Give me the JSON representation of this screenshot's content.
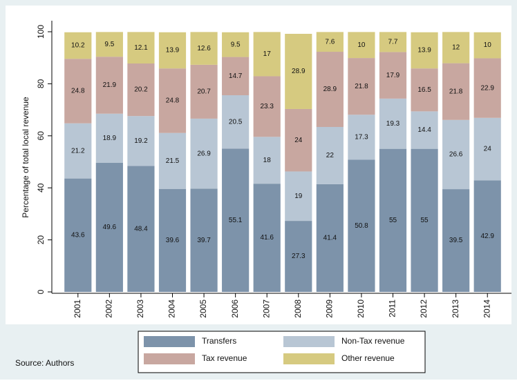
{
  "chart_data": {
    "type": "stacked_bar",
    "y_label": "Percentage of total local revenue",
    "source": "Source: Authors",
    "categories": [
      "2001",
      "2002",
      "2003",
      "2004",
      "2005",
      "2006",
      "2007",
      "2008",
      "2009",
      "2010",
      "2011",
      "2012",
      "2013",
      "2014"
    ],
    "series": [
      {
        "name": "Transfers",
        "color": "#7d93aa",
        "values": [
          43.6,
          49.6,
          48.4,
          39.6,
          39.7,
          55.1,
          41.6,
          27.3,
          41.4,
          50.8,
          55,
          55,
          39.5,
          42.9
        ]
      },
      {
        "name": "Non-Tax revenue",
        "color": "#b8c6d4",
        "values": [
          21.2,
          18.9,
          19.2,
          21.5,
          26.9,
          20.5,
          18,
          19,
          22,
          17.3,
          19.3,
          14.4,
          26.6,
          24
        ]
      },
      {
        "name": "Tax revenue",
        "color": "#c8a7a0",
        "values": [
          24.8,
          21.9,
          20.2,
          24.8,
          20.7,
          14.7,
          23.3,
          24,
          28.9,
          21.8,
          17.9,
          16.5,
          21.8,
          22.9
        ]
      },
      {
        "name": "Other revenue",
        "color": "#d6ca80",
        "values": [
          10.2,
          9.5,
          12.1,
          13.9,
          12.6,
          9.5,
          17,
          28.9,
          7.6,
          10,
          7.7,
          13.9,
          12,
          10
        ]
      }
    ],
    "ylim": [
      0,
      100
    ],
    "yticks": [
      0,
      20,
      40,
      60,
      80,
      100
    ]
  }
}
